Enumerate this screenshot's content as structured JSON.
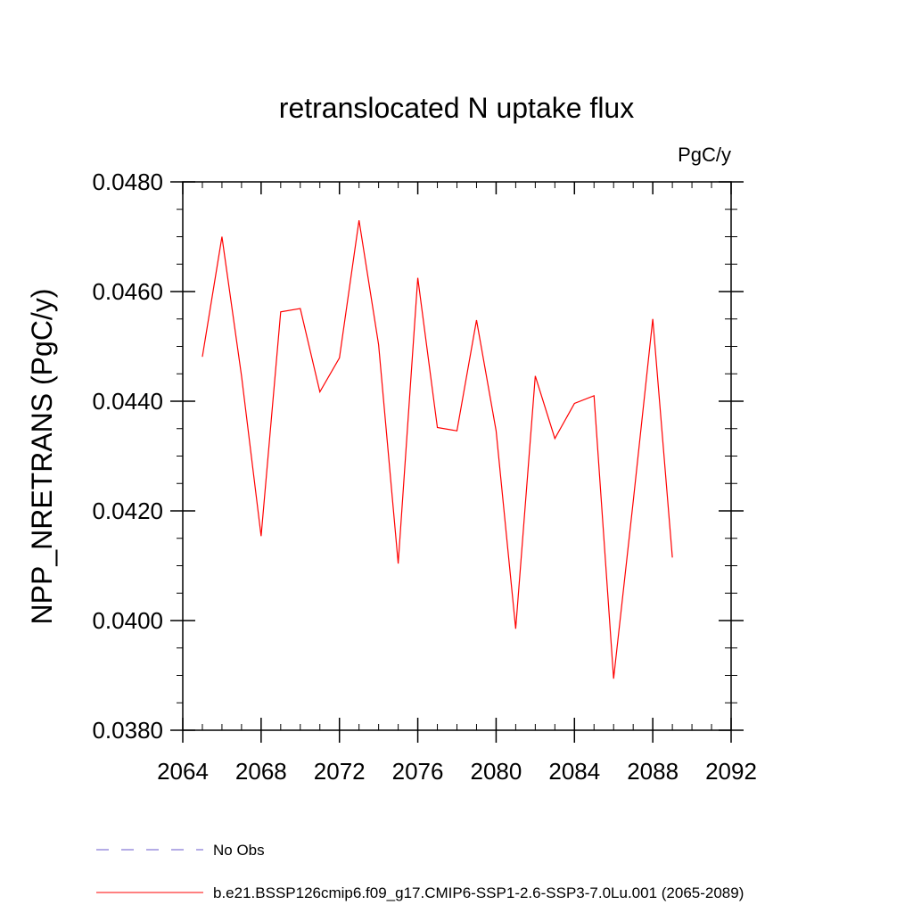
{
  "chart_data": {
    "type": "line",
    "title": "retranslocated N uptake flux",
    "units_label": "PgC/y",
    "ylabel": "NPP_NRETRANS  (PgC/y)",
    "xlabel": "",
    "xlim": [
      2064,
      2092
    ],
    "ylim": [
      0.038,
      0.048
    ],
    "xticks": [
      2064,
      2068,
      2072,
      2076,
      2080,
      2084,
      2088,
      2092
    ],
    "xtick_labels": [
      "2064",
      "2068",
      "2072",
      "2076",
      "2080",
      "2084",
      "2088",
      "2092"
    ],
    "yticks": [
      0.038,
      0.04,
      0.042,
      0.044,
      0.046,
      0.048
    ],
    "ytick_labels": [
      "0.0380",
      "0.0400",
      "0.0420",
      "0.0440",
      "0.0460",
      "0.0480"
    ],
    "grid": false,
    "legend_position": "bottom",
    "series": [
      {
        "name": "b.e21.BSSP126cmip6.f09_g17.CMIP6-SSP1-2.6-SSP3-7.0Lu.001 (2065-2089)",
        "color": "#ff0000",
        "style": "solid",
        "x": [
          2065,
          2066,
          2067,
          2068,
          2069,
          2070,
          2071,
          2072,
          2073,
          2074,
          2075,
          2076,
          2077,
          2078,
          2079,
          2080,
          2081,
          2082,
          2083,
          2084,
          2085,
          2086,
          2087,
          2088,
          2089
        ],
        "y": [
          0.04481,
          0.047,
          0.04446,
          0.04154,
          0.04563,
          0.04569,
          0.04417,
          0.04479,
          0.0473,
          0.04503,
          0.04104,
          0.04625,
          0.04352,
          0.04346,
          0.04548,
          0.04346,
          0.03985,
          0.04446,
          0.04332,
          0.04396,
          0.0441,
          0.03894,
          0.04217,
          0.0455,
          0.04115
        ]
      }
    ],
    "legend": [
      {
        "label": "No Obs",
        "color": "#6a5acd",
        "style": "dashed"
      },
      {
        "label": "b.e21.BSSP126cmip6.f09_g17.CMIP6-SSP1-2.6-SSP3-7.0Lu.001 (2065-2089)",
        "color": "#ff0000",
        "style": "solid"
      }
    ]
  }
}
